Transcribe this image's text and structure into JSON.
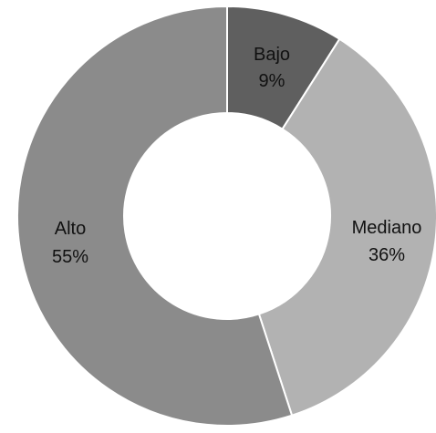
{
  "chart_data": {
    "type": "pie",
    "variant": "donut",
    "start_angle_deg": 0,
    "direction": "clockwise",
    "slices": [
      {
        "label": "Bajo",
        "value": 9,
        "value_label": "9%",
        "color": "#5f5f5f"
      },
      {
        "label": "Mediano",
        "value": 36,
        "value_label": "36%",
        "color": "#b2b2b2"
      },
      {
        "label": "Alto",
        "value": 55,
        "value_label": "55%",
        "color": "#8b8b8b"
      }
    ],
    "title": "",
    "legend": "none",
    "background": "#ffffff"
  }
}
